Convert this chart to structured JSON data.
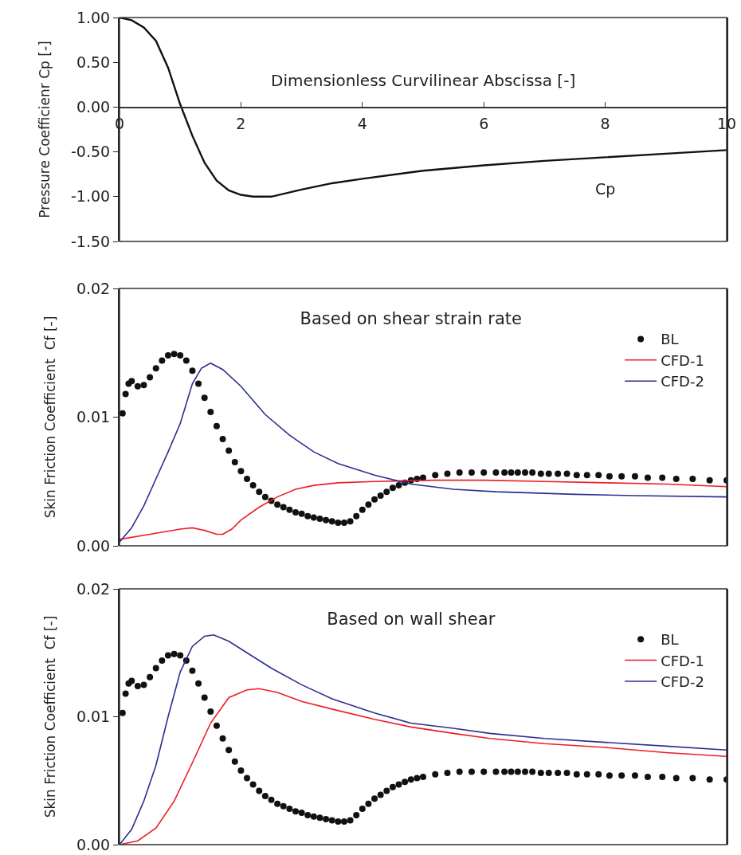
{
  "chart_data": [
    {
      "type": "line",
      "xlabel": "Dimensionless Curvilinear Abscissa [-]",
      "ylabel": "Pressure Coefficienr Cp [-]",
      "xlim": [
        0,
        10
      ],
      "ylim": [
        -1.5,
        1
      ],
      "xticks": [
        0,
        2,
        4,
        6,
        8,
        10
      ],
      "yticks": [
        {
          "value": -1.5,
          "label": "-1.50"
        },
        {
          "value": -1,
          "label": "-1.00"
        },
        {
          "value": -0.5,
          "label": "-0.50"
        },
        {
          "value": 0,
          "label": "0.00"
        },
        {
          "value": 0.5,
          "label": "0.50"
        },
        {
          "value": 1,
          "label": "1.00"
        }
      ],
      "grid": false,
      "legend": false,
      "line_style": "solid",
      "series": [
        {
          "name": "Cp",
          "color": "#111111",
          "x": [
            0,
            0.2,
            0.4,
            0.6,
            0.8,
            1.0,
            1.2,
            1.4,
            1.6,
            1.8,
            2.0,
            2.2,
            2.5,
            3.0,
            3.5,
            4.0,
            5.0,
            6.0,
            7.0,
            8.0,
            9.0,
            10
          ],
          "values": [
            1.0,
            0.97,
            0.89,
            0.74,
            0.44,
            0.03,
            -0.32,
            -0.62,
            -0.82,
            -0.93,
            -0.98,
            -1.0,
            -1.0,
            -0.92,
            -0.85,
            -0.8,
            -0.71,
            -0.65,
            -0.6,
            -0.56,
            -0.52,
            -0.48
          ]
        }
      ]
    },
    {
      "type": "line",
      "title": "Based on shear strain rate",
      "ylabel": "Skin Friction Coefficient  Cf [-]",
      "xlim": [
        0,
        10
      ],
      "ylim": [
        0,
        0.02
      ],
      "yticks": [
        {
          "value": 0,
          "label": "0.00"
        },
        {
          "value": 0.01,
          "label": "0.01"
        },
        {
          "value": 0.02,
          "label": "0.02"
        }
      ],
      "tick_labels": "y",
      "grid": false,
      "legend": "top right",
      "line_style": "solid",
      "series": [
        {
          "name": "BL",
          "type": "scatter",
          "marker": "circle",
          "color": "#111111",
          "x": [
            0.05,
            0.1,
            0.15,
            0.2,
            0.3,
            0.4,
            0.5,
            0.6,
            0.7,
            0.8,
            0.9,
            1.0,
            1.1,
            1.2,
            1.3,
            1.4,
            1.5,
            1.6,
            1.7,
            1.8,
            1.9,
            2.0,
            2.1,
            2.2,
            2.3,
            2.4,
            2.5,
            2.6,
            2.7,
            2.8,
            2.9,
            3.0,
            3.1,
            3.2,
            3.3,
            3.4,
            3.5,
            3.6,
            3.7,
            3.8,
            3.9,
            4.0,
            4.1,
            4.2,
            4.3,
            4.4,
            4.5,
            4.6,
            4.7,
            4.8,
            4.9,
            5.0,
            5.2,
            5.4,
            5.6,
            5.8,
            6.0,
            6.2,
            6.34,
            6.45,
            6.56,
            6.68,
            6.8,
            6.94,
            7.07,
            7.22,
            7.37,
            7.53,
            7.7,
            7.89,
            8.07,
            8.27,
            8.49,
            8.7,
            8.94,
            9.17,
            9.44,
            9.72,
            10.0
          ],
          "values": [
            0.0103,
            0.0118,
            0.0126,
            0.0128,
            0.0124,
            0.0125,
            0.0131,
            0.0138,
            0.0144,
            0.0148,
            0.0149,
            0.0148,
            0.0144,
            0.0136,
            0.0126,
            0.0115,
            0.0104,
            0.0093,
            0.0083,
            0.0074,
            0.0065,
            0.0058,
            0.0052,
            0.0047,
            0.0042,
            0.0038,
            0.0035,
            0.0032,
            0.003,
            0.0028,
            0.0026,
            0.0025,
            0.0023,
            0.0022,
            0.0021,
            0.002,
            0.0019,
            0.0018,
            0.0018,
            0.0019,
            0.0023,
            0.0028,
            0.0032,
            0.0036,
            0.0039,
            0.0042,
            0.0045,
            0.0047,
            0.0049,
            0.0051,
            0.0052,
            0.0053,
            0.0055,
            0.0056,
            0.0057,
            0.0057,
            0.0057,
            0.0057,
            0.0057,
            0.0057,
            0.0057,
            0.0057,
            0.0057,
            0.0056,
            0.0056,
            0.0056,
            0.0056,
            0.0055,
            0.0055,
            0.0055,
            0.0054,
            0.0054,
            0.0054,
            0.0053,
            0.0053,
            0.0052,
            0.0052,
            0.0051,
            0.0051
          ]
        },
        {
          "name": "CFD-1",
          "color": "#ee1c25",
          "x": [
            0,
            0.5,
            1.0,
            1.2,
            1.4,
            1.6,
            1.7,
            1.85,
            2.0,
            2.3,
            2.6,
            2.9,
            3.2,
            3.6,
            4.2,
            5.2,
            6.0,
            7.0,
            8.0,
            9.0,
            10.0
          ],
          "values": [
            0.0005,
            0.0009,
            0.0013,
            0.0014,
            0.0012,
            0.0009,
            0.0009,
            0.0013,
            0.002,
            0.003,
            0.0038,
            0.0044,
            0.0047,
            0.0049,
            0.005,
            0.0051,
            0.0051,
            0.005,
            0.0049,
            0.0048,
            0.0046
          ]
        },
        {
          "name": "CFD-2",
          "color": "#2b2f8f",
          "x": [
            0,
            0.2,
            0.4,
            0.6,
            0.8,
            1.0,
            1.2,
            1.35,
            1.5,
            1.7,
            2.0,
            2.4,
            2.8,
            3.2,
            3.6,
            4.2,
            4.8,
            5.5,
            6.2,
            7.5,
            8.5,
            10
          ],
          "values": [
            0.0003,
            0.0014,
            0.0031,
            0.0052,
            0.0073,
            0.0095,
            0.0126,
            0.0138,
            0.0142,
            0.0137,
            0.0124,
            0.0102,
            0.0086,
            0.0073,
            0.0064,
            0.0055,
            0.0048,
            0.0044,
            0.0042,
            0.004,
            0.0039,
            0.0038
          ]
        }
      ]
    },
    {
      "type": "line",
      "title": "Based on wall shear",
      "ylabel": "Skin Friction Coefficient  Cf [-]",
      "xlim": [
        0,
        10
      ],
      "ylim": [
        0,
        0.02
      ],
      "yticks": [
        {
          "value": 0,
          "label": "0.00"
        },
        {
          "value": 0.01,
          "label": "0.01"
        },
        {
          "value": 0.02,
          "label": "0.02"
        }
      ],
      "tick_labels": "y",
      "grid": false,
      "legend": "top right",
      "line_style": "solid",
      "series": [
        {
          "name": "BL",
          "type": "scatter",
          "marker": "circle",
          "color": "#111111",
          "x": [
            0.05,
            0.1,
            0.15,
            0.2,
            0.3,
            0.4,
            0.5,
            0.6,
            0.7,
            0.8,
            0.9,
            1.0,
            1.1,
            1.2,
            1.3,
            1.4,
            1.5,
            1.6,
            1.7,
            1.8,
            1.9,
            2.0,
            2.1,
            2.2,
            2.3,
            2.4,
            2.5,
            2.6,
            2.7,
            2.8,
            2.9,
            3.0,
            3.1,
            3.2,
            3.3,
            3.4,
            3.5,
            3.6,
            3.7,
            3.8,
            3.9,
            4.0,
            4.1,
            4.2,
            4.3,
            4.4,
            4.5,
            4.6,
            4.7,
            4.8,
            4.9,
            5.0,
            5.2,
            5.4,
            5.6,
            5.8,
            6.0,
            6.2,
            6.34,
            6.45,
            6.56,
            6.68,
            6.8,
            6.94,
            7.07,
            7.22,
            7.37,
            7.53,
            7.7,
            7.89,
            8.07,
            8.27,
            8.49,
            8.7,
            8.94,
            9.17,
            9.44,
            9.72,
            10.0
          ],
          "values": [
            0.0103,
            0.0118,
            0.0126,
            0.0128,
            0.0124,
            0.0125,
            0.0131,
            0.0138,
            0.0144,
            0.0148,
            0.0149,
            0.0148,
            0.0144,
            0.0136,
            0.0126,
            0.0115,
            0.0104,
            0.0093,
            0.0083,
            0.0074,
            0.0065,
            0.0058,
            0.0052,
            0.0047,
            0.0042,
            0.0038,
            0.0035,
            0.0032,
            0.003,
            0.0028,
            0.0026,
            0.0025,
            0.0023,
            0.0022,
            0.0021,
            0.002,
            0.0019,
            0.0018,
            0.0018,
            0.0019,
            0.0023,
            0.0028,
            0.0032,
            0.0036,
            0.0039,
            0.0042,
            0.0045,
            0.0047,
            0.0049,
            0.0051,
            0.0052,
            0.0053,
            0.0055,
            0.0056,
            0.0057,
            0.0057,
            0.0057,
            0.0057,
            0.0057,
            0.0057,
            0.0057,
            0.0057,
            0.0057,
            0.0056,
            0.0056,
            0.0056,
            0.0056,
            0.0055,
            0.0055,
            0.0055,
            0.0054,
            0.0054,
            0.0054,
            0.0053,
            0.0053,
            0.0052,
            0.0052,
            0.0051,
            0.0051
          ]
        },
        {
          "name": "CFD-1",
          "color": "#ee1c25",
          "x": [
            0,
            0.3,
            0.6,
            0.9,
            1.2,
            1.5,
            1.8,
            2.1,
            2.3,
            2.6,
            3.0,
            3.5,
            4.2,
            4.8,
            5.5,
            6.1,
            7.0,
            8.0,
            9.0,
            10
          ],
          "values": [
            0,
            0.0003,
            0.0013,
            0.0034,
            0.0064,
            0.0095,
            0.0115,
            0.0121,
            0.0122,
            0.0119,
            0.0112,
            0.0106,
            0.0098,
            0.0092,
            0.0087,
            0.0083,
            0.0079,
            0.0076,
            0.0072,
            0.0069
          ]
        },
        {
          "name": "CFD-2",
          "color": "#2b2f8f",
          "x": [
            0,
            0.2,
            0.4,
            0.6,
            0.8,
            1.0,
            1.2,
            1.4,
            1.55,
            1.8,
            2.1,
            2.5,
            3.0,
            3.5,
            4.2,
            4.8,
            5.5,
            6.1,
            7.0,
            8.0,
            9.0,
            10
          ],
          "values": [
            0,
            0.0012,
            0.0034,
            0.0062,
            0.01,
            0.0135,
            0.0155,
            0.0163,
            0.0164,
            0.0159,
            0.015,
            0.0138,
            0.0125,
            0.0114,
            0.0103,
            0.0095,
            0.0091,
            0.0087,
            0.0083,
            0.008,
            0.0077,
            0.0074
          ]
        }
      ]
    }
  ]
}
